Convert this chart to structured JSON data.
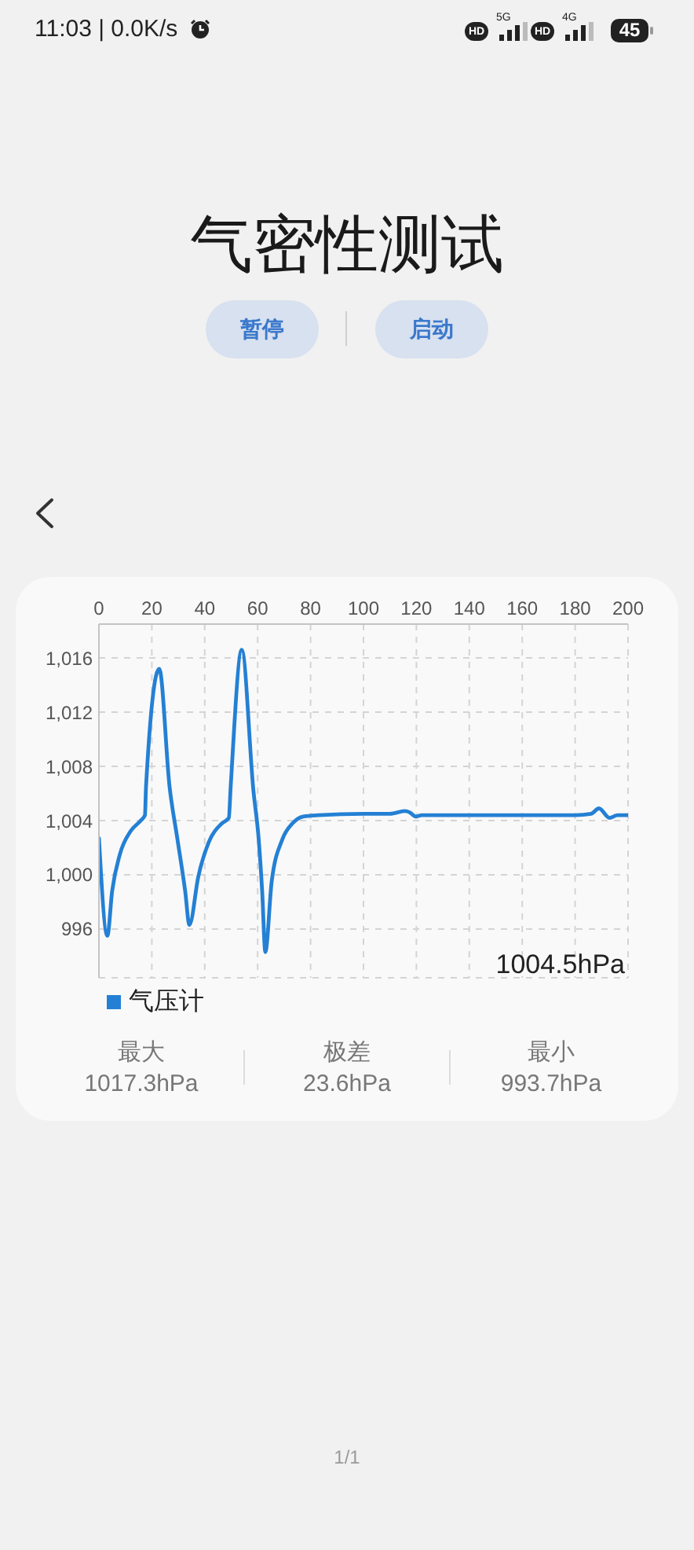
{
  "chart_data": {
    "type": "line",
    "title": "气密性测试",
    "annotations": [
      "11:03 | 0.0K/s",
      "HD",
      "5G",
      "HD",
      "4G",
      "45",
      "暂停",
      "启动",
      "1004.5hPa",
      "最大",
      "1017.3hPa",
      "极差",
      "23.6hPa",
      "最小",
      "993.7hPa",
      "1/1"
    ],
    "x": [
      0,
      3.2,
      5,
      7.9,
      11.9,
      15.8,
      17.4,
      17.8,
      22.8,
      26.7,
      29.7,
      32.6,
      34.2,
      37.6,
      41.5,
      46.5,
      49.1,
      49.8,
      54,
      58.4,
      60.4,
      61.7,
      62.9,
      65.3,
      69.3,
      73.2,
      77.2,
      83,
      100,
      110,
      115.7,
      117.5,
      119.7,
      122,
      140,
      160,
      180,
      186,
      189,
      193,
      196,
      200
    ],
    "series": [
      {
        "name": "气压计",
        "color": "#2480d4",
        "values": [
          1002.7,
          995.5,
          998.8,
          1001.5,
          1003.2,
          1004,
          1004.4,
          1006.5,
          1015.2,
          1006.5,
          1002.6,
          998.8,
          996.3,
          999.9,
          1002.4,
          1003.8,
          1004.2,
          1006.5,
          1016.6,
          1006.2,
          1002.6,
          998.8,
          994.3,
          999.5,
          1002.6,
          1003.8,
          1004.3,
          1004.4,
          1004.5,
          1004.5,
          1004.7,
          1004.6,
          1004.3,
          1004.4,
          1004.4,
          1004.4,
          1004.4,
          1004.5,
          1004.9,
          1004.2,
          1004.4,
          1004.4
        ]
      }
    ],
    "xlim": [
      0,
      200
    ],
    "xticks": [
      0,
      20,
      40,
      60,
      80,
      100,
      120,
      140,
      160,
      180,
      200
    ],
    "ylim": [
      992.4,
      1018.5
    ],
    "yticks": [
      996,
      {
        "value": 1000,
        "label": "1,000"
      },
      {
        "value": 1004,
        "label": "1,004"
      },
      {
        "value": 1008,
        "label": "1,008"
      },
      {
        "value": 1012,
        "label": "1,012"
      },
      {
        "value": 1016,
        "label": "1,016"
      }
    ],
    "grid": true,
    "legend": "bottom left",
    "marker": "none",
    "line_style": "solid"
  }
}
